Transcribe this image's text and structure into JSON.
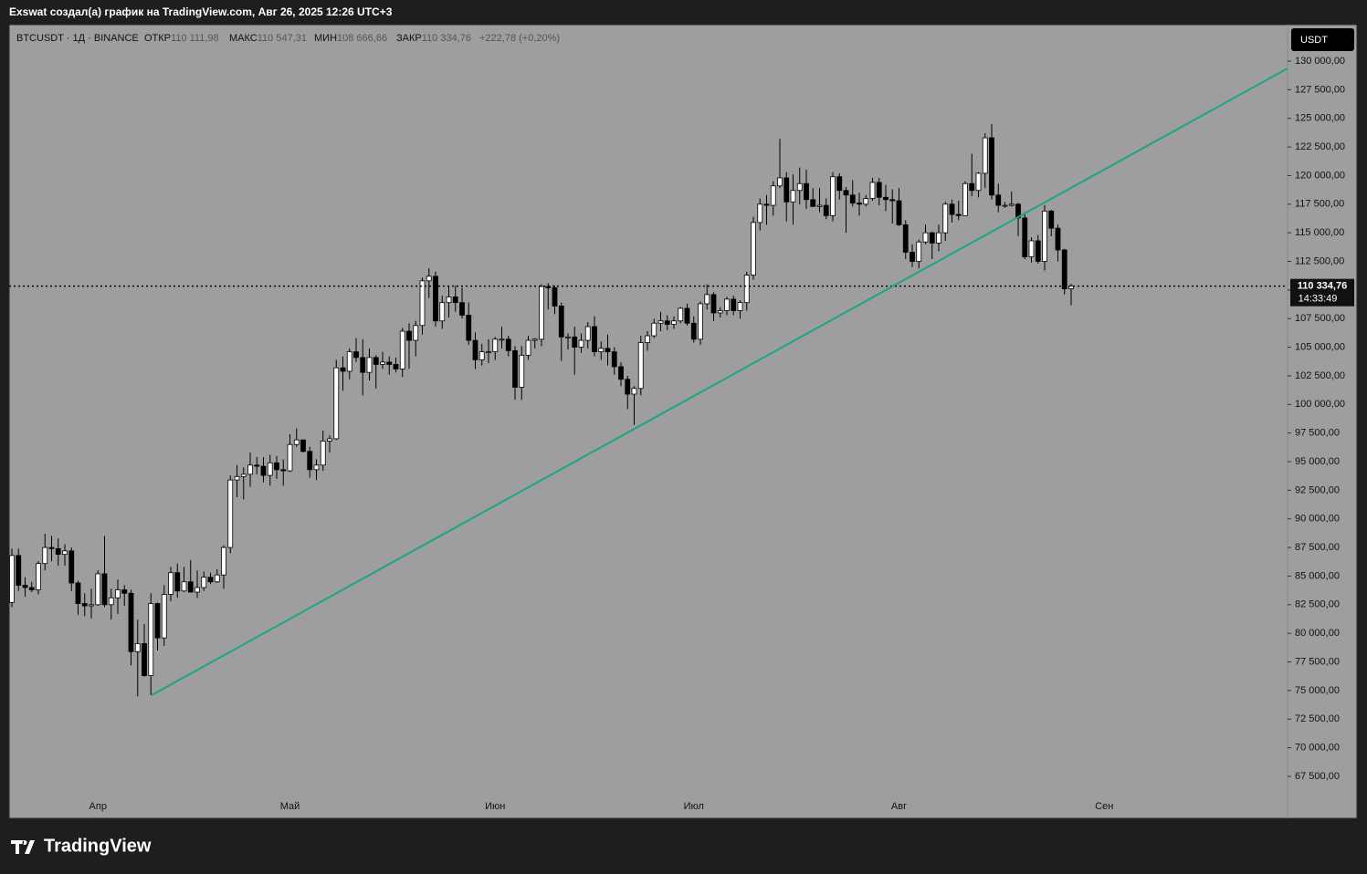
{
  "header": {
    "caption": "Exswat создал(а) график на TradingView.com, Авг 26, 2025 12:26 UTC+3"
  },
  "legend": {
    "symbol": "BTCUSDT · 1Д · BINANCE",
    "open_label": "ОТКР",
    "open": "110 111,98",
    "high_label": "МАКС",
    "high": "110 547,31",
    "low_label": "МИН",
    "low": "108 666,66",
    "close_label": "ЗАКР",
    "close": "110 334,76",
    "change": "+222,78 (+0,20%)"
  },
  "price_axis": {
    "currency": "USDT",
    "last_price": "110 334,76",
    "countdown": "14:33:49"
  },
  "footer": {
    "brand": "TradingView"
  },
  "chart_data": {
    "type": "candlestick",
    "up_color": "#ffffff",
    "down_color": "#000000",
    "ylim": [
      63830,
      133190
    ],
    "yticks": [
      {
        "value": 67500,
        "label": "67 500,00"
      },
      {
        "value": 70000,
        "label": "70 000,00"
      },
      {
        "value": 72500,
        "label": "72 500,00"
      },
      {
        "value": 75000,
        "label": "75 000,00"
      },
      {
        "value": 77500,
        "label": "77 500,00"
      },
      {
        "value": 80000,
        "label": "80 000,00"
      },
      {
        "value": 82500,
        "label": "82 500,00"
      },
      {
        "value": 85000,
        "label": "85 000,00"
      },
      {
        "value": 87500,
        "label": "87 500,00"
      },
      {
        "value": 90000,
        "label": "90 000,00"
      },
      {
        "value": 92500,
        "label": "92 500,00"
      },
      {
        "value": 95000,
        "label": "95 000,00"
      },
      {
        "value": 97500,
        "label": "97 500,00"
      },
      {
        "value": 100000,
        "label": "100 000,00"
      },
      {
        "value": 102500,
        "label": "102 500,00"
      },
      {
        "value": 105000,
        "label": "105 000,00"
      },
      {
        "value": 107500,
        "label": "107 500,00"
      },
      {
        "value": 110000,
        "label": "110 000,00"
      },
      {
        "value": 112500,
        "label": "112 500,00"
      },
      {
        "value": 115000,
        "label": "115 000,00"
      },
      {
        "value": 117500,
        "label": "117 500,00"
      },
      {
        "value": 120000,
        "label": "120 000,00"
      },
      {
        "value": 122500,
        "label": "122 500,00"
      },
      {
        "value": 125000,
        "label": "125 000,00"
      },
      {
        "value": 127500,
        "label": "127 500,00"
      },
      {
        "value": 130000,
        "label": "130 000,00"
      }
    ],
    "categories": [
      null,
      null,
      null,
      null,
      null,
      null,
      null,
      null,
      null,
      null,
      null,
      null,
      null,
      "Апр",
      null,
      null,
      null,
      null,
      null,
      null,
      null,
      null,
      null,
      null,
      null,
      null,
      null,
      null,
      null,
      null,
      null,
      null,
      null,
      null,
      null,
      null,
      null,
      null,
      null,
      null,
      null,
      null,
      "Май",
      null,
      null,
      null,
      null,
      null,
      null,
      null,
      null,
      null,
      null,
      null,
      null,
      null,
      null,
      null,
      null,
      null,
      null,
      null,
      null,
      null,
      null,
      null,
      null,
      null,
      null,
      null,
      null,
      null,
      null,
      "Июн",
      null,
      null,
      null,
      null,
      null,
      null,
      null,
      null,
      null,
      null,
      null,
      null,
      null,
      null,
      null,
      null,
      null,
      null,
      null,
      null,
      null,
      null,
      null,
      null,
      null,
      null,
      null,
      null,
      null,
      "Июл",
      null,
      null,
      null,
      null,
      null,
      null,
      null,
      null,
      null,
      null,
      null,
      null,
      null,
      null,
      null,
      null,
      null,
      null,
      null,
      null,
      null,
      null,
      null,
      null,
      null,
      null,
      null,
      null,
      null,
      null,
      "Авг",
      null,
      null,
      null,
      null,
      null,
      null,
      null,
      null,
      null,
      null,
      null,
      null,
      null,
      null,
      null,
      null,
      null,
      null,
      null,
      null,
      null,
      null,
      null,
      null,
      null,
      null,
      null,
      null,
      null,
      null,
      "Сен"
    ],
    "ohlc": [
      [
        82700,
        87400,
        82300,
        86800
      ],
      [
        86800,
        87400,
        83700,
        84200
      ],
      [
        84200,
        84900,
        83200,
        84000
      ],
      [
        84000,
        84500,
        83600,
        83800
      ],
      [
        83800,
        86300,
        83400,
        86100
      ],
      [
        86100,
        88700,
        85500,
        87500
      ],
      [
        87500,
        88500,
        86300,
        87400
      ],
      [
        87400,
        88300,
        85900,
        86900
      ],
      [
        86900,
        87800,
        85900,
        87200
      ],
      [
        87200,
        87500,
        83700,
        84400
      ],
      [
        84400,
        84600,
        81600,
        82600
      ],
      [
        82600,
        83500,
        81500,
        82400
      ],
      [
        82400,
        83900,
        81300,
        82500
      ],
      [
        82500,
        85500,
        82400,
        85200
      ],
      [
        85200,
        88500,
        82300,
        82500
      ],
      [
        82500,
        83900,
        81200,
        83100
      ],
      [
        83100,
        84700,
        81700,
        83800
      ],
      [
        83800,
        84200,
        82400,
        83500
      ],
      [
        83500,
        83800,
        77200,
        78400
      ],
      [
        78400,
        81200,
        74500,
        79100
      ],
      [
        79100,
        80800,
        76200,
        76300
      ],
      [
        76300,
        83500,
        74600,
        82600
      ],
      [
        82600,
        82700,
        78500,
        79600
      ],
      [
        79600,
        84200,
        78900,
        83400
      ],
      [
        83400,
        85800,
        82800,
        85300
      ],
      [
        85300,
        86100,
        83100,
        83700
      ],
      [
        83700,
        85800,
        83600,
        84500
      ],
      [
        84500,
        86400,
        83600,
        83600
      ],
      [
        83600,
        85500,
        83100,
        84000
      ],
      [
        84000,
        85400,
        83700,
        84900
      ],
      [
        84900,
        85300,
        84300,
        84500
      ],
      [
        84500,
        85600,
        84400,
        85100
      ],
      [
        85100,
        87700,
        83900,
        87500
      ],
      [
        87500,
        93800,
        87000,
        93400
      ],
      [
        93400,
        94700,
        91900,
        93700
      ],
      [
        93700,
        94500,
        91700,
        93900
      ],
      [
        93900,
        95800,
        92800,
        94700
      ],
      [
        94700,
        95400,
        93900,
        94600
      ],
      [
        94600,
        95400,
        93200,
        93800
      ],
      [
        93800,
        95600,
        92900,
        94900
      ],
      [
        94900,
        95500,
        93500,
        94300
      ],
      [
        94300,
        95200,
        92900,
        94200
      ],
      [
        94200,
        97400,
        94100,
        96500
      ],
      [
        96500,
        97900,
        96300,
        96900
      ],
      [
        96900,
        96900,
        95800,
        95900
      ],
      [
        95900,
        96300,
        93600,
        94300
      ],
      [
        94300,
        95200,
        93400,
        94700
      ],
      [
        94700,
        97700,
        94200,
        96800
      ],
      [
        96800,
        97300,
        95800,
        97000
      ],
      [
        97000,
        103900,
        96900,
        103200
      ],
      [
        103200,
        104200,
        101200,
        102900
      ],
      [
        102900,
        104900,
        102200,
        104600
      ],
      [
        104600,
        105800,
        103700,
        104100
      ],
      [
        104100,
        105700,
        100800,
        102800
      ],
      [
        102800,
        104900,
        102100,
        104100
      ],
      [
        104100,
        104300,
        101400,
        103500
      ],
      [
        103500,
        104600,
        103100,
        103700
      ],
      [
        103700,
        104200,
        102600,
        103500
      ],
      [
        103500,
        104100,
        102800,
        103100
      ],
      [
        103100,
        106700,
        102400,
        106400
      ],
      [
        106400,
        107100,
        103100,
        105600
      ],
      [
        105600,
        107300,
        104200,
        106900
      ],
      [
        106900,
        111100,
        106100,
        110800
      ],
      [
        110800,
        111900,
        109300,
        111200
      ],
      [
        111200,
        111600,
        106800,
        107300
      ],
      [
        107300,
        109500,
        106600,
        108900
      ],
      [
        108900,
        110300,
        107600,
        109400
      ],
      [
        109400,
        110400,
        108100,
        108900
      ],
      [
        108900,
        110200,
        107500,
        107800
      ],
      [
        107800,
        108900,
        105200,
        105600
      ],
      [
        105600,
        106300,
        103100,
        103900
      ],
      [
        103900,
        105300,
        103400,
        104600
      ],
      [
        104600,
        105700,
        103600,
        104600
      ],
      [
        104600,
        105900,
        103900,
        105700
      ],
      [
        105700,
        106800,
        104900,
        105700
      ],
      [
        105700,
        106000,
        104200,
        104700
      ],
      [
        104700,
        105100,
        100400,
        101500
      ],
      [
        101500,
        105100,
        100400,
        104300
      ],
      [
        104300,
        106000,
        103900,
        105600
      ],
      [
        105600,
        105800,
        104900,
        105700
      ],
      [
        105700,
        110500,
        105100,
        110300
      ],
      [
        110300,
        110600,
        108300,
        110200
      ],
      [
        110200,
        110400,
        107900,
        108600
      ],
      [
        108600,
        108900,
        103800,
        105900
      ],
      [
        105900,
        106200,
        104800,
        105900
      ],
      [
        105900,
        106800,
        102600,
        105000
      ],
      [
        105000,
        106200,
        104500,
        105600
      ],
      [
        105600,
        107200,
        104900,
        106800
      ],
      [
        106800,
        107700,
        104200,
        104600
      ],
      [
        104600,
        105500,
        103900,
        104900
      ],
      [
        104900,
        106100,
        103400,
        104600
      ],
      [
        104600,
        105000,
        102600,
        103300
      ],
      [
        103300,
        103700,
        101600,
        102200
      ],
      [
        102200,
        102500,
        99600,
        100900
      ],
      [
        100900,
        101600,
        98200,
        101400
      ],
      [
        101400,
        106000,
        100800,
        105400
      ],
      [
        105400,
        106400,
        104700,
        106000
      ],
      [
        106000,
        107500,
        105800,
        107100
      ],
      [
        107100,
        108100,
        106400,
        107300
      ],
      [
        107300,
        107800,
        106500,
        107000
      ],
      [
        107000,
        107700,
        106600,
        107300
      ],
      [
        107300,
        108500,
        107100,
        108400
      ],
      [
        108400,
        108800,
        106900,
        107100
      ],
      [
        107100,
        107700,
        105400,
        105700
      ],
      [
        105700,
        109000,
        105200,
        108800
      ],
      [
        108800,
        110500,
        108300,
        109600
      ],
      [
        109600,
        109800,
        107300,
        108000
      ],
      [
        108000,
        108500,
        107600,
        108200
      ],
      [
        108200,
        109400,
        107800,
        109200
      ],
      [
        109200,
        109500,
        107800,
        108200
      ],
      [
        108200,
        109100,
        107500,
        108900
      ],
      [
        108900,
        111600,
        108200,
        111300
      ],
      [
        111300,
        116400,
        110900,
        115900
      ],
      [
        115900,
        118000,
        115200,
        117500
      ],
      [
        117500,
        118300,
        115700,
        117400
      ],
      [
        117400,
        119500,
        116500,
        119100
      ],
      [
        119100,
        123200,
        118900,
        119800
      ],
      [
        119800,
        120300,
        116000,
        117700
      ],
      [
        117700,
        120100,
        115700,
        118700
      ],
      [
        118700,
        120700,
        117500,
        119300
      ],
      [
        119300,
        120500,
        117100,
        117900
      ],
      [
        117900,
        118900,
        117300,
        117300
      ],
      [
        117300,
        118900,
        116800,
        117400
      ],
      [
        117400,
        118000,
        116200,
        116500
      ],
      [
        116500,
        120300,
        116000,
        119900
      ],
      [
        119900,
        120200,
        117900,
        118700
      ],
      [
        118700,
        119000,
        115000,
        118300
      ],
      [
        118300,
        119600,
        117300,
        117600
      ],
      [
        117600,
        118500,
        116500,
        117500
      ],
      [
        117500,
        118300,
        117300,
        118000
      ],
      [
        118000,
        119800,
        117800,
        119400
      ],
      [
        119400,
        119800,
        117400,
        118100
      ],
      [
        118100,
        119200,
        116900,
        117900
      ],
      [
        117900,
        118800,
        115800,
        117800
      ],
      [
        117800,
        118900,
        115600,
        115700
      ],
      [
        115700,
        116100,
        112700,
        113300
      ],
      [
        113300,
        114000,
        112000,
        112500
      ],
      [
        112500,
        114400,
        111900,
        114200
      ],
      [
        114200,
        115700,
        114000,
        115000
      ],
      [
        115000,
        115100,
        112700,
        114100
      ],
      [
        114100,
        115700,
        113400,
        115000
      ],
      [
        115000,
        117700,
        114300,
        117500
      ],
      [
        117500,
        117900,
        115900,
        116600
      ],
      [
        116600,
        117800,
        116100,
        116500
      ],
      [
        116500,
        119500,
        116500,
        119300
      ],
      [
        119300,
        121900,
        118200,
        118700
      ],
      [
        118700,
        120300,
        118100,
        120200
      ],
      [
        120200,
        123700,
        118900,
        123300
      ],
      [
        123300,
        124500,
        117900,
        118300
      ],
      [
        118300,
        119300,
        116800,
        117400
      ],
      [
        117400,
        117700,
        117200,
        117400
      ],
      [
        117400,
        118600,
        117300,
        117500
      ],
      [
        117500,
        117600,
        114700,
        116300
      ],
      [
        116300,
        116800,
        112700,
        112900
      ],
      [
        112900,
        114600,
        112400,
        114300
      ],
      [
        114300,
        114800,
        112300,
        112500
      ],
      [
        112500,
        117400,
        111700,
        116900
      ],
      [
        116900,
        117000,
        114700,
        115400
      ],
      [
        115400,
        115700,
        112500,
        113500
      ],
      [
        113500,
        113600,
        109600,
        110100
      ],
      [
        110111.98,
        110547.31,
        108666.66,
        110334.76
      ],
      null,
      null,
      null,
      null,
      null,
      null
    ]
  }
}
